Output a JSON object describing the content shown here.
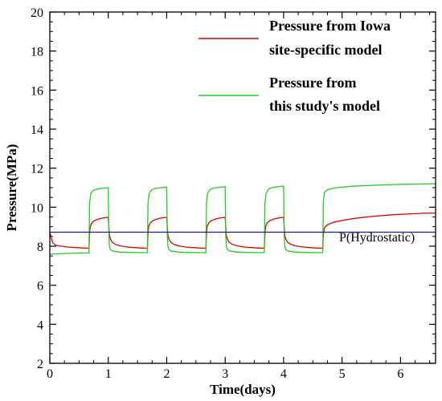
{
  "chart_data": {
    "type": "line",
    "xlabel": "Time(days)",
    "ylabel": "Pressure(MPa)",
    "xlim": [
      0,
      6.6
    ],
    "ylim": [
      2,
      20
    ],
    "xticks": [
      0,
      1,
      2,
      3,
      4,
      5,
      6
    ],
    "yticks": [
      2,
      4,
      6,
      8,
      10,
      12,
      14,
      16,
      18,
      20
    ],
    "legend_position": "top-right",
    "series": [
      {
        "name": "Pressure from Iowa site-specific model",
        "color": "#e00000",
        "x": [
          0,
          0.02,
          0.04,
          0.06,
          0.1,
          0.2,
          0.3,
          0.4,
          0.5,
          0.6,
          0.67,
          0.68,
          0.69,
          0.72,
          0.76,
          0.82,
          0.88,
          0.94,
          1.0,
          1.01,
          1.02,
          1.04,
          1.07,
          1.12,
          1.2,
          1.3,
          1.4,
          1.5,
          1.6,
          1.67,
          1.68,
          1.69,
          1.72,
          1.76,
          1.82,
          1.88,
          1.94,
          2.0,
          2.01,
          2.02,
          2.04,
          2.07,
          2.12,
          2.2,
          2.3,
          2.4,
          2.5,
          2.6,
          2.67,
          2.68,
          2.69,
          2.72,
          2.76,
          2.82,
          2.88,
          2.94,
          3.0,
          3.01,
          3.02,
          3.04,
          3.07,
          3.12,
          3.2,
          3.3,
          3.4,
          3.5,
          3.6,
          3.67,
          3.68,
          3.69,
          3.72,
          3.76,
          3.82,
          3.88,
          3.94,
          4.0,
          4.01,
          4.02,
          4.04,
          4.07,
          4.12,
          4.2,
          4.3,
          4.4,
          4.5,
          4.6,
          4.67,
          4.68,
          4.7,
          4.75,
          4.85,
          5.0,
          5.2,
          5.5,
          5.8,
          6.1,
          6.4,
          6.6
        ],
        "y": [
          8.7,
          8.5,
          8.25,
          8.15,
          8.05,
          8.0,
          7.96,
          7.94,
          7.92,
          7.9,
          7.9,
          8.6,
          9.0,
          9.2,
          9.3,
          9.38,
          9.43,
          9.46,
          9.48,
          9.0,
          8.55,
          8.35,
          8.2,
          8.1,
          8.02,
          7.97,
          7.94,
          7.92,
          7.9,
          7.9,
          8.6,
          9.0,
          9.2,
          9.3,
          9.38,
          9.43,
          9.46,
          9.48,
          9.0,
          8.55,
          8.35,
          8.2,
          8.1,
          8.02,
          7.97,
          7.94,
          7.92,
          7.9,
          7.9,
          8.6,
          9.0,
          9.2,
          9.3,
          9.38,
          9.43,
          9.46,
          9.48,
          9.0,
          8.55,
          8.35,
          8.2,
          8.1,
          8.02,
          7.97,
          7.94,
          7.92,
          7.9,
          7.9,
          8.6,
          9.0,
          9.2,
          9.3,
          9.38,
          9.43,
          9.46,
          9.48,
          9.0,
          8.55,
          8.35,
          8.2,
          8.1,
          8.02,
          7.97,
          7.94,
          7.92,
          7.9,
          7.9,
          8.6,
          8.95,
          9.1,
          9.22,
          9.32,
          9.42,
          9.52,
          9.6,
          9.65,
          9.69,
          9.7
        ]
      },
      {
        "name": "Pressure from this study's model",
        "color": "#22cc22",
        "x": [
          0,
          0.05,
          0.2,
          0.4,
          0.6,
          0.67,
          0.68,
          0.7,
          0.74,
          0.8,
          0.9,
          1.0,
          1.01,
          1.02,
          1.04,
          1.08,
          1.2,
          1.4,
          1.6,
          1.67,
          1.68,
          1.7,
          1.74,
          1.8,
          1.9,
          2.0,
          2.01,
          2.02,
          2.04,
          2.08,
          2.2,
          2.4,
          2.6,
          2.67,
          2.68,
          2.7,
          2.74,
          2.8,
          2.9,
          3.0,
          3.01,
          3.02,
          3.04,
          3.08,
          3.2,
          3.4,
          3.6,
          3.67,
          3.68,
          3.7,
          3.74,
          3.8,
          3.9,
          4.0,
          4.01,
          4.02,
          4.04,
          4.08,
          4.2,
          4.4,
          4.6,
          4.67,
          4.68,
          4.7,
          4.75,
          4.9,
          5.2,
          5.6,
          6.0,
          6.6
        ],
        "y": [
          7.6,
          7.6,
          7.62,
          7.64,
          7.65,
          7.65,
          10.2,
          10.7,
          10.85,
          10.92,
          10.97,
          11.0,
          8.6,
          8.0,
          7.82,
          7.75,
          7.7,
          7.68,
          7.67,
          7.67,
          10.2,
          10.7,
          10.88,
          10.96,
          11.0,
          11.03,
          8.6,
          8.0,
          7.82,
          7.75,
          7.7,
          7.68,
          7.67,
          7.67,
          10.2,
          10.7,
          10.9,
          10.98,
          11.02,
          11.05,
          8.6,
          8.0,
          7.82,
          7.75,
          7.7,
          7.68,
          7.67,
          7.67,
          10.2,
          10.7,
          10.92,
          11.0,
          11.05,
          11.08,
          8.6,
          8.0,
          7.82,
          7.75,
          7.7,
          7.68,
          7.67,
          7.67,
          10.3,
          10.75,
          10.9,
          11.0,
          11.08,
          11.13,
          11.17,
          11.2
        ]
      },
      {
        "name": "P(Hydrostatic)",
        "color": "#1a1aaa",
        "x": [
          0,
          6.6
        ],
        "y": [
          8.72,
          8.72
        ]
      }
    ],
    "annotations": [
      {
        "text": "P(Hydrostatic)",
        "x": 4.95,
        "y": 8.25
      }
    ]
  }
}
